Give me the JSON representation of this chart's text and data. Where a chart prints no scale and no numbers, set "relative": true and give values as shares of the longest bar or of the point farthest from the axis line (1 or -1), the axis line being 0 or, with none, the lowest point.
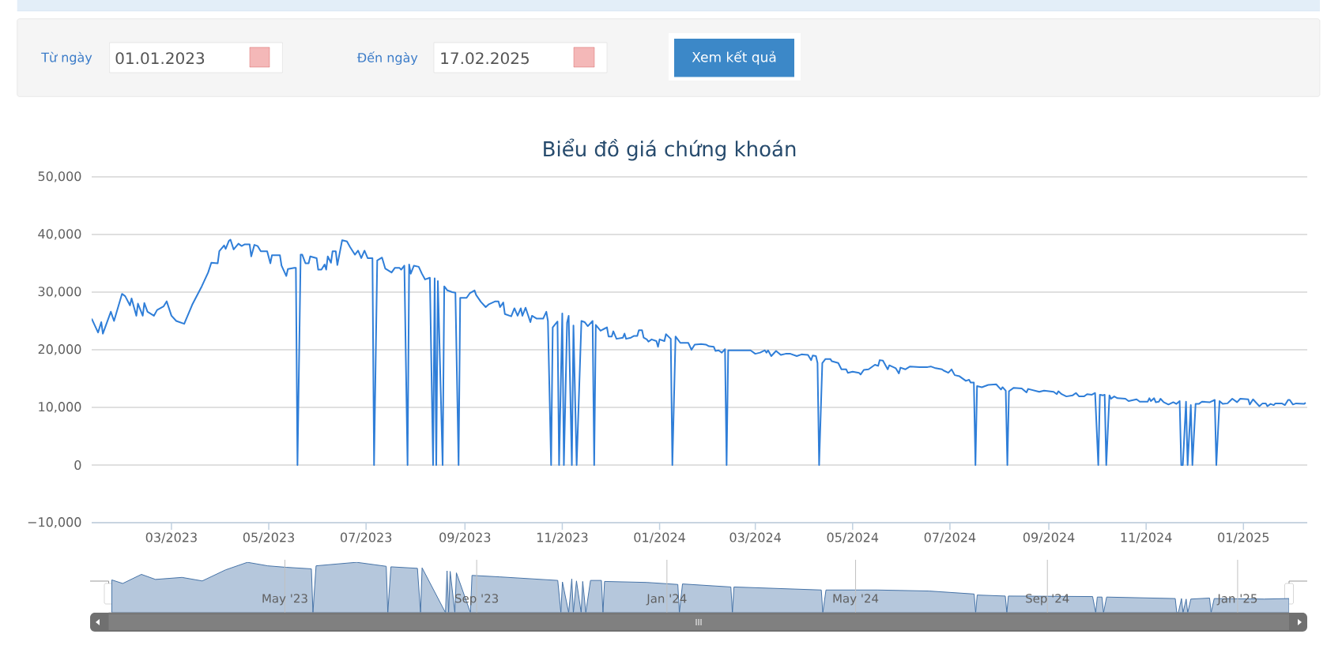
{
  "chart_data": [
    {
      "type": "line",
      "title": "Biểu đồ giá chứng khoán",
      "color": "#2f7ed8",
      "grid": "y",
      "annotations": [
        "Từ ngày",
        "01.01.2023",
        "Đến ngày",
        "17.02.2025",
        "Xem kết quả"
      ],
      "xlim": [
        "2023-01-10",
        "2025-02-10"
      ],
      "ylim": [
        -10000,
        50000
      ],
      "xticks": [
        {
          "value": "2023-03-01",
          "label": "03/2023"
        },
        {
          "value": "2023-05-01",
          "label": "05/2023"
        },
        {
          "value": "2023-07-01",
          "label": "07/2023"
        },
        {
          "value": "2023-09-01",
          "label": "09/2023"
        },
        {
          "value": "2023-11-01",
          "label": "11/2023"
        },
        {
          "value": "2024-01-01",
          "label": "01/2024"
        },
        {
          "value": "2024-03-01",
          "label": "03/2024"
        },
        {
          "value": "2024-05-01",
          "label": "05/2024"
        },
        {
          "value": "2024-07-01",
          "label": "07/2024"
        },
        {
          "value": "2024-09-01",
          "label": "09/2024"
        },
        {
          "value": "2024-11-01",
          "label": "11/2024"
        },
        {
          "value": "2025-01-01",
          "label": "01/2025"
        }
      ],
      "yticks": [
        {
          "value": -10000,
          "label": "−10,000"
        },
        0,
        {
          "value": 10000,
          "label": "10,000"
        },
        {
          "value": 20000,
          "label": "20,000"
        },
        {
          "value": 30000,
          "label": "30,000"
        },
        {
          "value": 40000,
          "label": "40,000"
        },
        {
          "value": 50000,
          "label": "50,000"
        }
      ],
      "x": [
        "2023-01-10",
        "2023-01-14",
        "2023-01-16",
        "2023-01-17",
        "2023-01-22",
        "2023-01-24",
        "2023-01-29",
        "2023-01-31",
        "2023-02-03",
        "2023-02-04",
        "2023-02-07",
        "2023-02-08",
        "2023-02-11",
        "2023-02-12",
        "2023-02-14",
        "2023-02-18",
        "2023-02-20",
        "2023-02-24",
        "2023-02-26",
        "2023-03-01",
        "2023-03-04",
        "2023-03-09",
        "2023-03-14",
        "2023-03-20",
        "2023-03-24",
        "2023-03-26",
        "2023-03-30",
        "2023-03-31",
        "2023-04-03",
        "2023-04-04",
        "2023-04-06",
        "2023-04-07",
        "2023-04-09",
        "2023-04-12",
        "2023-04-14",
        "2023-04-16",
        "2023-04-19",
        "2023-04-20",
        "2023-04-22",
        "2023-04-24",
        "2023-04-26",
        "2023-04-30",
        "2023-05-02",
        "2023-05-03",
        "2023-05-06",
        "2023-05-08",
        "2023-05-09",
        "2023-05-12",
        "2023-05-13",
        "2023-05-17",
        "2023-05-18",
        "2023-05-19",
        "2023-05-21",
        "2023-05-22",
        "2023-05-24",
        "2023-05-26",
        "2023-05-27",
        "2023-05-31",
        "2023-06-01",
        "2023-06-03",
        "2023-06-05",
        "2023-06-06",
        "2023-06-07",
        "2023-06-09",
        "2023-06-10",
        "2023-06-12",
        "2023-06-13",
        "2023-06-16",
        "2023-06-19",
        "2023-06-21",
        "2023-06-24",
        "2023-06-26",
        "2023-06-28",
        "2023-06-30",
        "2023-07-02",
        "2023-07-05",
        "2023-07-06",
        "2023-07-08",
        "2023-07-11",
        "2023-07-13",
        "2023-07-17",
        "2023-07-19",
        "2023-07-22",
        "2023-07-23",
        "2023-07-25",
        "2023-07-27",
        "2023-07-28",
        "2023-07-29",
        "2023-07-31",
        "2023-08-03",
        "2023-08-05",
        "2023-08-07",
        "2023-08-10",
        "2023-08-12",
        "2023-08-13",
        "2023-08-14",
        "2023-08-15",
        "2023-08-18",
        "2023-08-19",
        "2023-08-21",
        "2023-08-24",
        "2023-08-26",
        "2023-08-28",
        "2023-08-29",
        "2023-09-02",
        "2023-09-04",
        "2023-09-07",
        "2023-09-08",
        "2023-09-11",
        "2023-09-14",
        "2023-09-16",
        "2023-09-20",
        "2023-09-22",
        "2023-09-23",
        "2023-09-25",
        "2023-09-26",
        "2023-09-30",
        "2023-10-02",
        "2023-10-04",
        "2023-10-06",
        "2023-10-07",
        "2023-10-09",
        "2023-10-12",
        "2023-10-13",
        "2023-10-16",
        "2023-10-20",
        "2023-10-22",
        "2023-10-23",
        "2023-10-25",
        "2023-10-26",
        "2023-10-29",
        "2023-10-30",
        "2023-11-01",
        "2023-11-02",
        "2023-11-04",
        "2023-11-05",
        "2023-11-07",
        "2023-11-08",
        "2023-11-10",
        "2023-11-13",
        "2023-11-15",
        "2023-11-17",
        "2023-11-20",
        "2023-11-21",
        "2023-11-22",
        "2023-11-25",
        "2023-11-29",
        "2023-11-30",
        "2023-12-02",
        "2023-12-03",
        "2023-12-05",
        "2023-12-09",
        "2023-12-10",
        "2023-12-11",
        "2023-12-14",
        "2023-12-16",
        "2023-12-18",
        "2023-12-19",
        "2023-12-21",
        "2023-12-22",
        "2023-12-24",
        "2023-12-25",
        "2023-12-27",
        "2023-12-30",
        "2023-12-31",
        "2024-01-01",
        "2024-01-04",
        "2024-01-05",
        "2024-01-08",
        "2024-01-09",
        "2024-01-11",
        "2024-01-14",
        "2024-01-19",
        "2024-01-21",
        "2024-01-23",
        "2024-01-27",
        "2024-01-30",
        "2024-02-01",
        "2024-02-04",
        "2024-02-05",
        "2024-02-07",
        "2024-02-09",
        "2024-02-11",
        "2024-02-12",
        "2024-02-13",
        "2024-02-20",
        "2024-02-27",
        "2024-03-01",
        "2024-03-04",
        "2024-03-07",
        "2024-03-08",
        "2024-03-09",
        "2024-03-11",
        "2024-03-14",
        "2024-03-17",
        "2024-03-20",
        "2024-03-23",
        "2024-03-27",
        "2024-03-30",
        "2024-04-03",
        "2024-04-05",
        "2024-04-06",
        "2024-04-08",
        "2024-04-09",
        "2024-04-10",
        "2024-04-12",
        "2024-04-14",
        "2024-04-17",
        "2024-04-18",
        "2024-04-22",
        "2024-04-24",
        "2024-04-27",
        "2024-04-28",
        "2024-05-01",
        "2024-05-05",
        "2024-05-06",
        "2024-05-08",
        "2024-05-11",
        "2024-05-15",
        "2024-05-17",
        "2024-05-18",
        "2024-05-20",
        "2024-05-23",
        "2024-05-24",
        "2024-05-28",
        "2024-05-30",
        "2024-05-31",
        "2024-06-03",
        "2024-06-06",
        "2024-06-12",
        "2024-06-17",
        "2024-06-19",
        "2024-06-22",
        "2024-06-26",
        "2024-06-27",
        "2024-06-30",
        "2024-07-02",
        "2024-07-04",
        "2024-07-07",
        "2024-07-11",
        "2024-07-13",
        "2024-07-14",
        "2024-07-16",
        "2024-07-17",
        "2024-07-18",
        "2024-07-21",
        "2024-07-25",
        "2024-07-30",
        "2024-08-02",
        "2024-08-03",
        "2024-08-05",
        "2024-08-06",
        "2024-08-07",
        "2024-08-10",
        "2024-08-15",
        "2024-08-18",
        "2024-08-19",
        "2024-08-26",
        "2024-08-29",
        "2024-09-04",
        "2024-09-06",
        "2024-09-07",
        "2024-09-09",
        "2024-09-12",
        "2024-09-16",
        "2024-09-18",
        "2024-09-20",
        "2024-09-23",
        "2024-09-25",
        "2024-09-28",
        "2024-09-30",
        "2024-10-02",
        "2024-10-03",
        "2024-10-05",
        "2024-10-06",
        "2024-10-07",
        "2024-10-09",
        "2024-10-10",
        "2024-10-12",
        "2024-10-14",
        "2024-10-19",
        "2024-10-21",
        "2024-10-26",
        "2024-10-28",
        "2024-11-02",
        "2024-11-03",
        "2024-11-04",
        "2024-11-06",
        "2024-11-07",
        "2024-11-09",
        "2024-11-10",
        "2024-11-12",
        "2024-11-15",
        "2024-11-18",
        "2024-11-20",
        "2024-11-22",
        "2024-11-23",
        "2024-11-24",
        "2024-11-26",
        "2024-11-27",
        "2024-11-29",
        "2024-11-30",
        "2024-12-02",
        "2024-12-04",
        "2024-12-06",
        "2024-12-11",
        "2024-12-14",
        "2024-12-15",
        "2024-12-17",
        "2024-12-19",
        "2024-12-22",
        "2024-12-25",
        "2024-12-28",
        "2024-12-30",
        "2025-01-04",
        "2025-01-05",
        "2025-01-07",
        "2025-01-11",
        "2025-01-13",
        "2025-01-15",
        "2025-01-16",
        "2025-01-18",
        "2025-01-20",
        "2025-01-21",
        "2025-01-25",
        "2025-01-27",
        "2025-01-29",
        "2025-01-30",
        "2025-02-01",
        "2025-02-03",
        "2025-02-08",
        "2025-02-09"
      ],
      "values": [
        25400,
        23000,
        24800,
        22800,
        26600,
        25000,
        29700,
        29300,
        27700,
        28900,
        25900,
        28000,
        25900,
        28100,
        26600,
        25900,
        26900,
        27500,
        28400,
        25900,
        25000,
        24500,
        27800,
        31000,
        33400,
        35100,
        35000,
        37100,
        38100,
        37500,
        38900,
        39100,
        37400,
        38400,
        38000,
        38300,
        38300,
        36200,
        38200,
        38000,
        37100,
        37100,
        35000,
        36400,
        36400,
        36400,
        34600,
        32800,
        34000,
        34200,
        34200,
        0,
        36500,
        36500,
        35000,
        35000,
        36200,
        35900,
        33900,
        33900,
        34800,
        33900,
        36200,
        35100,
        37100,
        37100,
        34700,
        39000,
        38800,
        37800,
        36500,
        37200,
        35900,
        37200,
        35900,
        35900,
        0,
        35500,
        36000,
        34100,
        33400,
        34200,
        34200,
        33900,
        34600,
        0,
        34800,
        33200,
        34600,
        34400,
        33200,
        32200,
        32500,
        0,
        32400,
        0,
        31900,
        0,
        31000,
        30300,
        30000,
        29900,
        0,
        29000,
        29000,
        29800,
        30300,
        29500,
        28300,
        27400,
        27900,
        28400,
        28400,
        27400,
        28200,
        26200,
        25800,
        27200,
        25900,
        27200,
        25900,
        27300,
        24800,
        25900,
        25400,
        25400,
        26600,
        25000,
        0,
        23900,
        24900,
        0,
        26300,
        0,
        24700,
        25900,
        0,
        24200,
        0,
        25000,
        24800,
        24100,
        25000,
        0,
        24300,
        23300,
        23900,
        22300,
        22300,
        23200,
        21900,
        22100,
        22800,
        21900,
        22100,
        22400,
        22400,
        23400,
        23400,
        22100,
        21800,
        21400,
        21800,
        21500,
        20500,
        21800,
        21500,
        22700,
        21900,
        0,
        22300,
        21200,
        21200,
        20000,
        20900,
        21000,
        20900,
        20600,
        20500,
        19800,
        19900,
        19500,
        20100,
        0,
        19900,
        19900,
        19900,
        19300,
        19500,
        19900,
        19500,
        19900,
        18900,
        19800,
        19100,
        19300,
        19300,
        18900,
        19200,
        19100,
        18200,
        19000,
        18900,
        17700,
        0,
        17700,
        18400,
        18400,
        18000,
        17700,
        16600,
        16600,
        16000,
        16200,
        16000,
        15700,
        16500,
        16600,
        17400,
        17200,
        18200,
        18100,
        16600,
        17300,
        16800,
        15900,
        16900,
        16600,
        17100,
        17000,
        17000,
        17100,
        16800,
        16600,
        16400,
        16000,
        16600,
        15600,
        15400,
        14600,
        14800,
        14300,
        14300,
        0,
        13700,
        13500,
        13900,
        14000,
        13100,
        13500,
        12900,
        0,
        12800,
        13400,
        13300,
        12600,
        13200,
        12700,
        12900,
        12700,
        12300,
        12800,
        12300,
        11900,
        12100,
        12500,
        11900,
        11900,
        12300,
        12200,
        12500,
        0,
        12200,
        12100,
        12200,
        0,
        12100,
        11500,
        11900,
        11600,
        11500,
        11100,
        11400,
        11000,
        11000,
        11600,
        11100,
        11600,
        10900,
        11000,
        11500,
        10900,
        10500,
        10900,
        10600,
        11100,
        0,
        0,
        11000,
        0,
        10400,
        0,
        10600,
        10600,
        11000,
        10900,
        11300,
        0,
        11100,
        10600,
        10700,
        11500,
        10900,
        11500,
        11400,
        10500,
        11400,
        10200,
        10700,
        10700,
        10200,
        10600,
        10400,
        10700,
        10700,
        10400,
        11300,
        11300,
        10500,
        10700,
        10600,
        10800
      ]
    },
    {
      "type": "area",
      "color": "#4572a7",
      "relative": true,
      "grid": "x",
      "xlim": [
        "2023-01-08",
        "2025-02-03"
      ],
      "xticks": [
        {
          "value": "2023-05-01",
          "label": "May '23"
        },
        {
          "value": "2023-09-01",
          "label": "Sep '23"
        },
        {
          "value": "2024-01-01",
          "label": "Jan '24"
        },
        {
          "value": "2024-05-01",
          "label": "May '24"
        },
        {
          "value": "2024-09-01",
          "label": "Sep '24"
        },
        {
          "value": "2025-01-01",
          "label": "Jan '25"
        }
      ],
      "x": [
        "2023-01-10",
        "2023-01-17",
        "2023-01-29",
        "2023-02-07",
        "2023-02-24",
        "2023-03-09",
        "2023-03-24",
        "2023-04-07",
        "2023-04-20",
        "2023-05-02",
        "2023-05-18",
        "2023-05-19",
        "2023-05-21",
        "2023-06-16",
        "2023-07-05",
        "2023-07-06",
        "2023-07-08",
        "2023-07-25",
        "2023-07-27",
        "2023-07-28",
        "2023-08-12",
        "2023-08-13",
        "2023-08-14",
        "2023-08-15",
        "2023-08-18",
        "2023-08-19",
        "2023-08-28",
        "2023-08-29",
        "2023-09-16",
        "2023-10-23",
        "2023-10-25",
        "2023-10-26",
        "2023-10-30",
        "2023-11-01",
        "2023-11-02",
        "2023-11-04",
        "2023-11-07",
        "2023-11-08",
        "2023-11-10",
        "2023-11-13",
        "2023-11-20",
        "2023-11-21",
        "2023-11-22",
        "2023-12-19",
        "2024-01-08",
        "2024-01-09",
        "2024-01-11",
        "2024-02-11",
        "2024-02-12",
        "2024-02-13",
        "2024-04-09",
        "2024-04-10",
        "2024-04-12",
        "2024-05-15",
        "2024-06-17",
        "2024-07-16",
        "2024-07-17",
        "2024-07-18",
        "2024-08-05",
        "2024-08-06",
        "2024-08-07",
        "2024-09-30",
        "2024-10-02",
        "2024-10-03",
        "2024-10-06",
        "2024-10-07",
        "2024-10-09",
        "2024-11-22",
        "2024-11-23",
        "2024-11-24",
        "2024-11-26",
        "2024-11-27",
        "2024-11-29",
        "2024-11-30",
        "2024-12-02",
        "2024-12-14",
        "2024-12-15",
        "2024-12-17",
        "2025-01-18",
        "2025-02-03"
      ],
      "values": [
        0.65,
        0.58,
        0.76,
        0.66,
        0.7,
        0.63,
        0.85,
        1,
        0.93,
        0.9,
        0.87,
        0,
        0.93,
        1,
        0.92,
        0,
        0.91,
        0.88,
        0,
        0.89,
        0,
        0.83,
        0,
        0.82,
        0,
        0.79,
        0,
        0.74,
        0.71,
        0.64,
        0,
        0.61,
        0,
        0.67,
        0,
        0.63,
        0,
        0.62,
        0,
        0.64,
        0.64,
        0,
        0.62,
        0.6,
        0.56,
        0,
        0.57,
        0.51,
        0,
        0.51,
        0.45,
        0,
        0.45,
        0.45,
        0.43,
        0.37,
        0,
        0.35,
        0.33,
        0,
        0.33,
        0.32,
        0,
        0.31,
        0.31,
        0,
        0.31,
        0.28,
        0,
        0,
        0.28,
        0,
        0.27,
        0,
        0.27,
        0.29,
        0,
        0.28,
        0.27,
        0.28
      ]
    }
  ]
}
